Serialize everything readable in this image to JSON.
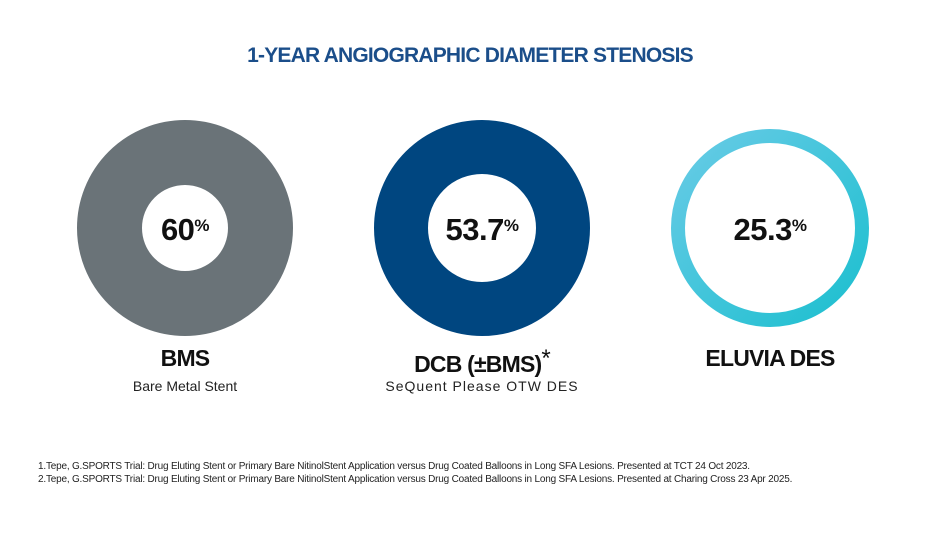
{
  "title": "1-YEAR ANGIOGRAPHIC DIAMETER STENOSIS",
  "items": [
    {
      "value": "60",
      "unit": "%",
      "label": "BMS",
      "sublabel": "Bare Metal Stent",
      "color": "#6a7378"
    },
    {
      "value": "53.7",
      "unit": "%",
      "label": "DCB (±BMS)",
      "asterisk": "*",
      "sublabel": "SeQuent Please OTW DES",
      "color": "#004680"
    },
    {
      "value": "25.3",
      "unit": "%",
      "label": "ELUVIA DES",
      "color_start": "#68cbe6",
      "color_end": "#1cbfcf"
    }
  ],
  "footnotes": [
    "1.Tepe, G.SPORTS Trial: Drug Eluting Stent or Primary Bare NitinolStent Application versus Drug Coated Balloons in Long SFA Lesions. Presented at TCT 24 Oct 2023.",
    "2.Tepe, G.SPORTS Trial: Drug Eluting Stent or Primary Bare NitinolStent Application versus Drug Coated Balloons in Long SFA Lesions. Presented at Charing Cross 23 Apr 2025."
  ]
}
